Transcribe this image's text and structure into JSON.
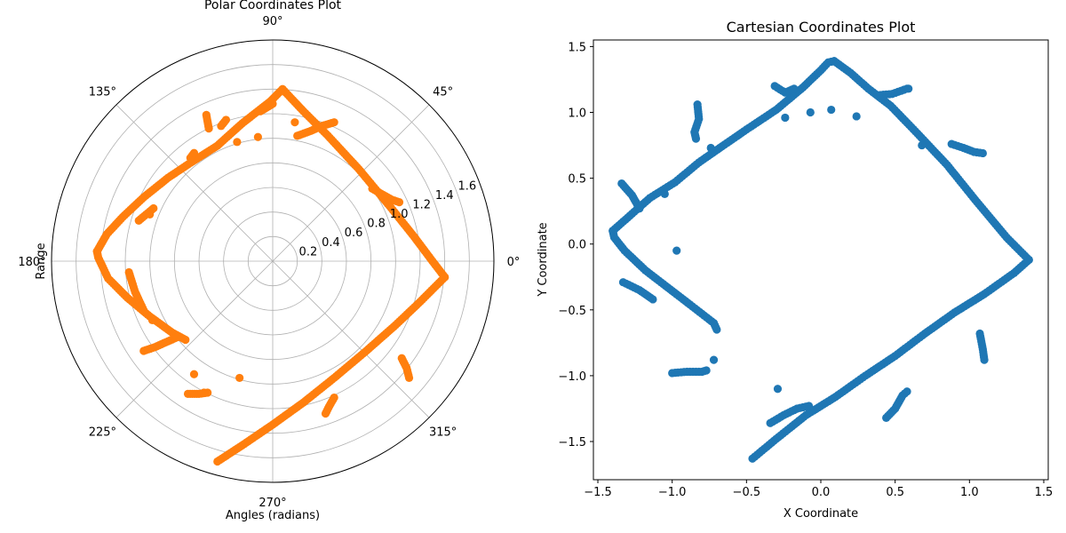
{
  "chart_data": [
    {
      "type": "scatter",
      "projection": "polar",
      "title": "Polar Coordinates Plot",
      "xlabel": "Angles (radians)",
      "ylabel": "Range",
      "angle_ticks": [
        "0°",
        "45°",
        "90°",
        "135°",
        "180°",
        "225°",
        "270°",
        "315°"
      ],
      "radial_ticks": [
        "0.2",
        "0.4",
        "0.6",
        "0.8",
        "1.0",
        "1.2",
        "1.4",
        "1.6"
      ],
      "rlim": [
        0,
        1.8
      ],
      "grid": true,
      "marker_color": "#ff7f0e",
      "segments": [
        [
          [
            -1.43,
            0.08
          ],
          [
            -1.42,
            0.03
          ],
          [
            -1.34,
            -0.14
          ],
          [
            -1.18,
            -0.3
          ],
          [
            -1.0,
            -0.45
          ],
          [
            -0.82,
            -0.58
          ],
          [
            -0.71,
            -0.64
          ]
        ],
        [
          [
            -1.43,
            0.08
          ],
          [
            -1.35,
            0.22
          ],
          [
            -1.22,
            0.36
          ],
          [
            -1.05,
            0.52
          ],
          [
            -0.85,
            0.68
          ],
          [
            -0.67,
            0.8
          ],
          [
            -0.45,
            0.94
          ],
          [
            -0.25,
            1.12
          ],
          [
            -0.02,
            1.3
          ],
          [
            0.08,
            1.4
          ]
        ],
        [
          [
            0.08,
            1.4
          ],
          [
            0.25,
            1.22
          ],
          [
            0.45,
            1.02
          ],
          [
            0.7,
            0.75
          ],
          [
            0.95,
            0.45
          ],
          [
            1.15,
            0.2
          ],
          [
            1.3,
            0.0
          ],
          [
            1.4,
            -0.13
          ]
        ],
        [
          [
            1.4,
            -0.13
          ],
          [
            1.2,
            -0.33
          ],
          [
            1.0,
            -0.52
          ],
          [
            0.75,
            -0.74
          ],
          [
            0.5,
            -0.95
          ],
          [
            0.25,
            -1.15
          ],
          [
            0.0,
            -1.33
          ],
          [
            -0.25,
            -1.5
          ],
          [
            -0.45,
            -1.63
          ]
        ],
        [
          [
            -1.05,
            -0.73
          ],
          [
            -0.96,
            -0.7
          ],
          [
            -0.87,
            -0.66
          ],
          [
            -0.78,
            -0.62
          ]
        ],
        [
          [
            -1.17,
            -0.09
          ],
          [
            -1.12,
            -0.25
          ],
          [
            -1.05,
            -0.4
          ]
        ],
        [
          [
            -1.09,
            0.33
          ],
          [
            -1.03,
            0.38
          ],
          [
            -0.97,
            0.43
          ]
        ],
        [
          [
            -0.54,
            1.19
          ],
          [
            -0.52,
            1.08
          ]
        ],
        [
          [
            -0.67,
            0.84
          ],
          [
            -0.64,
            0.88
          ]
        ],
        [
          [
            -0.42,
            1.1
          ],
          [
            -0.38,
            1.15
          ]
        ],
        [
          [
            -0.1,
            1.22
          ],
          [
            0.0,
            1.28
          ]
        ],
        [
          [
            0.2,
            1.02
          ],
          [
            0.31,
            1.06
          ],
          [
            0.4,
            1.1
          ],
          [
            0.5,
            1.13
          ]
        ],
        [
          [
            0.81,
            0.59
          ],
          [
            0.88,
            0.55
          ],
          [
            0.97,
            0.5
          ],
          [
            1.03,
            0.48
          ]
        ],
        [
          [
            1.05,
            -0.79
          ],
          [
            1.09,
            -0.87
          ],
          [
            1.11,
            -0.95
          ]
        ],
        [
          [
            0.5,
            -1.11
          ],
          [
            0.46,
            -1.18
          ],
          [
            0.43,
            -1.24
          ]
        ],
        [
          [
            -0.69,
            -1.08
          ],
          [
            -0.6,
            -1.08
          ],
          [
            -0.53,
            -1.07
          ]
        ]
      ],
      "points": [
        [
          -0.29,
          0.97
        ],
        [
          -0.27,
          -0.95
        ],
        [
          -0.98,
          -0.48
        ],
        [
          -0.64,
          -0.92
        ],
        [
          -0.12,
          1.01
        ],
        [
          0.18,
          1.13
        ],
        [
          -1.0,
          0.38
        ],
        [
          -0.56,
          -1.07
        ]
      ]
    },
    {
      "type": "scatter",
      "projection": "cartesian",
      "title": "Cartesian Coordinates Plot",
      "xlabel": "X Coordinate",
      "ylabel": "Y Coordinate",
      "x_ticks": [
        -1.5,
        -1.0,
        -0.5,
        0.0,
        0.5,
        1.0,
        1.5
      ],
      "y_ticks": [
        -1.5,
        -1.0,
        -0.5,
        0.0,
        0.5,
        1.0,
        1.5
      ],
      "x_tick_labels": [
        "−1.5",
        "−1.0",
        "−0.5",
        "0.0",
        "0.5",
        "1.0",
        "1.5"
      ],
      "y_tick_labels": [
        "−1.5",
        "−1.0",
        "−0.5",
        "0.0",
        "0.5",
        "1.0",
        "1.5"
      ],
      "xlim": [
        -1.53,
        1.53
      ],
      "ylim": [
        -1.79,
        1.55
      ],
      "grid": false,
      "marker_color": "#1f77b4",
      "segments": [
        [
          [
            -1.4,
            0.1
          ],
          [
            -1.39,
            0.05
          ],
          [
            -1.32,
            -0.05
          ],
          [
            -1.18,
            -0.2
          ],
          [
            -1.03,
            -0.33
          ],
          [
            -0.88,
            -0.46
          ],
          [
            -0.72,
            -0.6
          ],
          [
            -0.7,
            -0.65
          ]
        ],
        [
          [
            -1.4,
            0.1
          ],
          [
            -1.3,
            0.2
          ],
          [
            -1.15,
            0.35
          ],
          [
            -0.98,
            0.47
          ],
          [
            -0.82,
            0.62
          ],
          [
            -0.68,
            0.73
          ],
          [
            -0.5,
            0.87
          ],
          [
            -0.3,
            1.02
          ],
          [
            -0.12,
            1.19
          ],
          [
            0.0,
            1.32
          ],
          [
            0.05,
            1.38
          ],
          [
            0.09,
            1.39
          ]
        ],
        [
          [
            0.09,
            1.39
          ],
          [
            0.2,
            1.3
          ],
          [
            0.32,
            1.18
          ],
          [
            0.47,
            1.05
          ],
          [
            0.65,
            0.84
          ],
          [
            0.85,
            0.6
          ],
          [
            1.05,
            0.32
          ],
          [
            1.25,
            0.05
          ],
          [
            1.4,
            -0.12
          ]
        ],
        [
          [
            1.4,
            -0.12
          ],
          [
            1.3,
            -0.22
          ],
          [
            1.1,
            -0.38
          ],
          [
            0.9,
            -0.52
          ],
          [
            0.7,
            -0.68
          ],
          [
            0.5,
            -0.85
          ],
          [
            0.3,
            -1.0
          ],
          [
            0.1,
            -1.16
          ],
          [
            -0.1,
            -1.3
          ],
          [
            -0.3,
            -1.48
          ],
          [
            -0.46,
            -1.63
          ]
        ],
        [
          [
            -1.34,
            0.46
          ],
          [
            -1.27,
            0.37
          ],
          [
            -1.22,
            0.27
          ]
        ],
        [
          [
            -1.33,
            -0.29
          ],
          [
            -1.22,
            -0.35
          ],
          [
            -1.13,
            -0.42
          ]
        ],
        [
          [
            -0.83,
            1.06
          ],
          [
            -0.82,
            0.95
          ],
          [
            -0.85,
            0.85
          ],
          [
            -0.84,
            0.8
          ]
        ],
        [
          [
            -1.0,
            -0.98
          ],
          [
            -0.9,
            -0.97
          ],
          [
            -0.8,
            -0.97
          ],
          [
            -0.77,
            -0.96
          ]
        ],
        [
          [
            -0.34,
            -1.36
          ],
          [
            -0.25,
            -1.3
          ],
          [
            -0.16,
            -1.25
          ],
          [
            -0.08,
            -1.23
          ]
        ],
        [
          [
            0.44,
            -1.32
          ],
          [
            0.5,
            -1.25
          ],
          [
            0.55,
            -1.15
          ],
          [
            0.58,
            -1.12
          ]
        ],
        [
          [
            1.07,
            -0.68
          ],
          [
            1.09,
            -0.8
          ],
          [
            1.1,
            -0.88
          ]
        ],
        [
          [
            0.88,
            0.76
          ],
          [
            0.96,
            0.73
          ],
          [
            1.03,
            0.7
          ],
          [
            1.09,
            0.69
          ]
        ],
        [
          [
            0.38,
            1.13
          ],
          [
            0.48,
            1.14
          ],
          [
            0.58,
            1.18
          ]
        ],
        [
          [
            -0.31,
            1.2
          ],
          [
            -0.24,
            1.15
          ],
          [
            -0.18,
            1.18
          ]
        ]
      ],
      "points": [
        [
          -0.74,
          0.73
        ],
        [
          -1.05,
          0.38
        ],
        [
          -0.97,
          -0.05
        ],
        [
          -0.29,
          -1.1
        ],
        [
          -0.24,
          0.96
        ],
        [
          -0.07,
          1.0
        ],
        [
          0.07,
          1.02
        ],
        [
          0.24,
          0.97
        ],
        [
          0.59,
          1.18
        ],
        [
          0.68,
          0.75
        ],
        [
          -0.72,
          -0.88
        ]
      ]
    }
  ]
}
